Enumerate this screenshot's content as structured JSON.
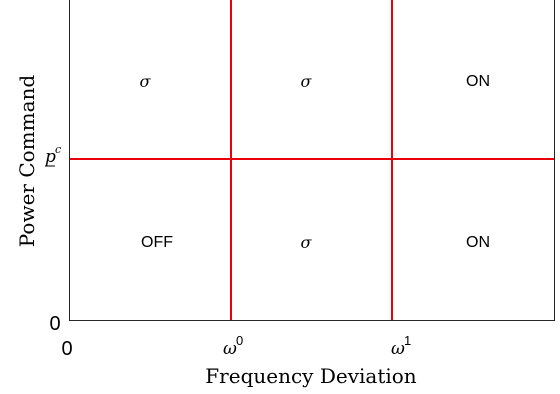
{
  "figure": {
    "ylabel": "Power Command",
    "xlabel": "Frequency Deviation",
    "x_origin_label": "0",
    "y_origin_label": "0",
    "x_tick_1": "ω",
    "x_tick_1_sup": "0",
    "x_tick_2": "ω",
    "x_tick_2_sup": "1",
    "y_tick_1": "p",
    "y_tick_1_sup": "c",
    "regions": {
      "top_left": "σ",
      "top_middle": "σ",
      "top_right": "ON",
      "bottom_left": "OFF",
      "bottom_middle": "σ",
      "bottom_right": "ON"
    },
    "colors": {
      "boundary": "#e8000b",
      "axis": "#262626",
      "text": "#000000"
    }
  }
}
